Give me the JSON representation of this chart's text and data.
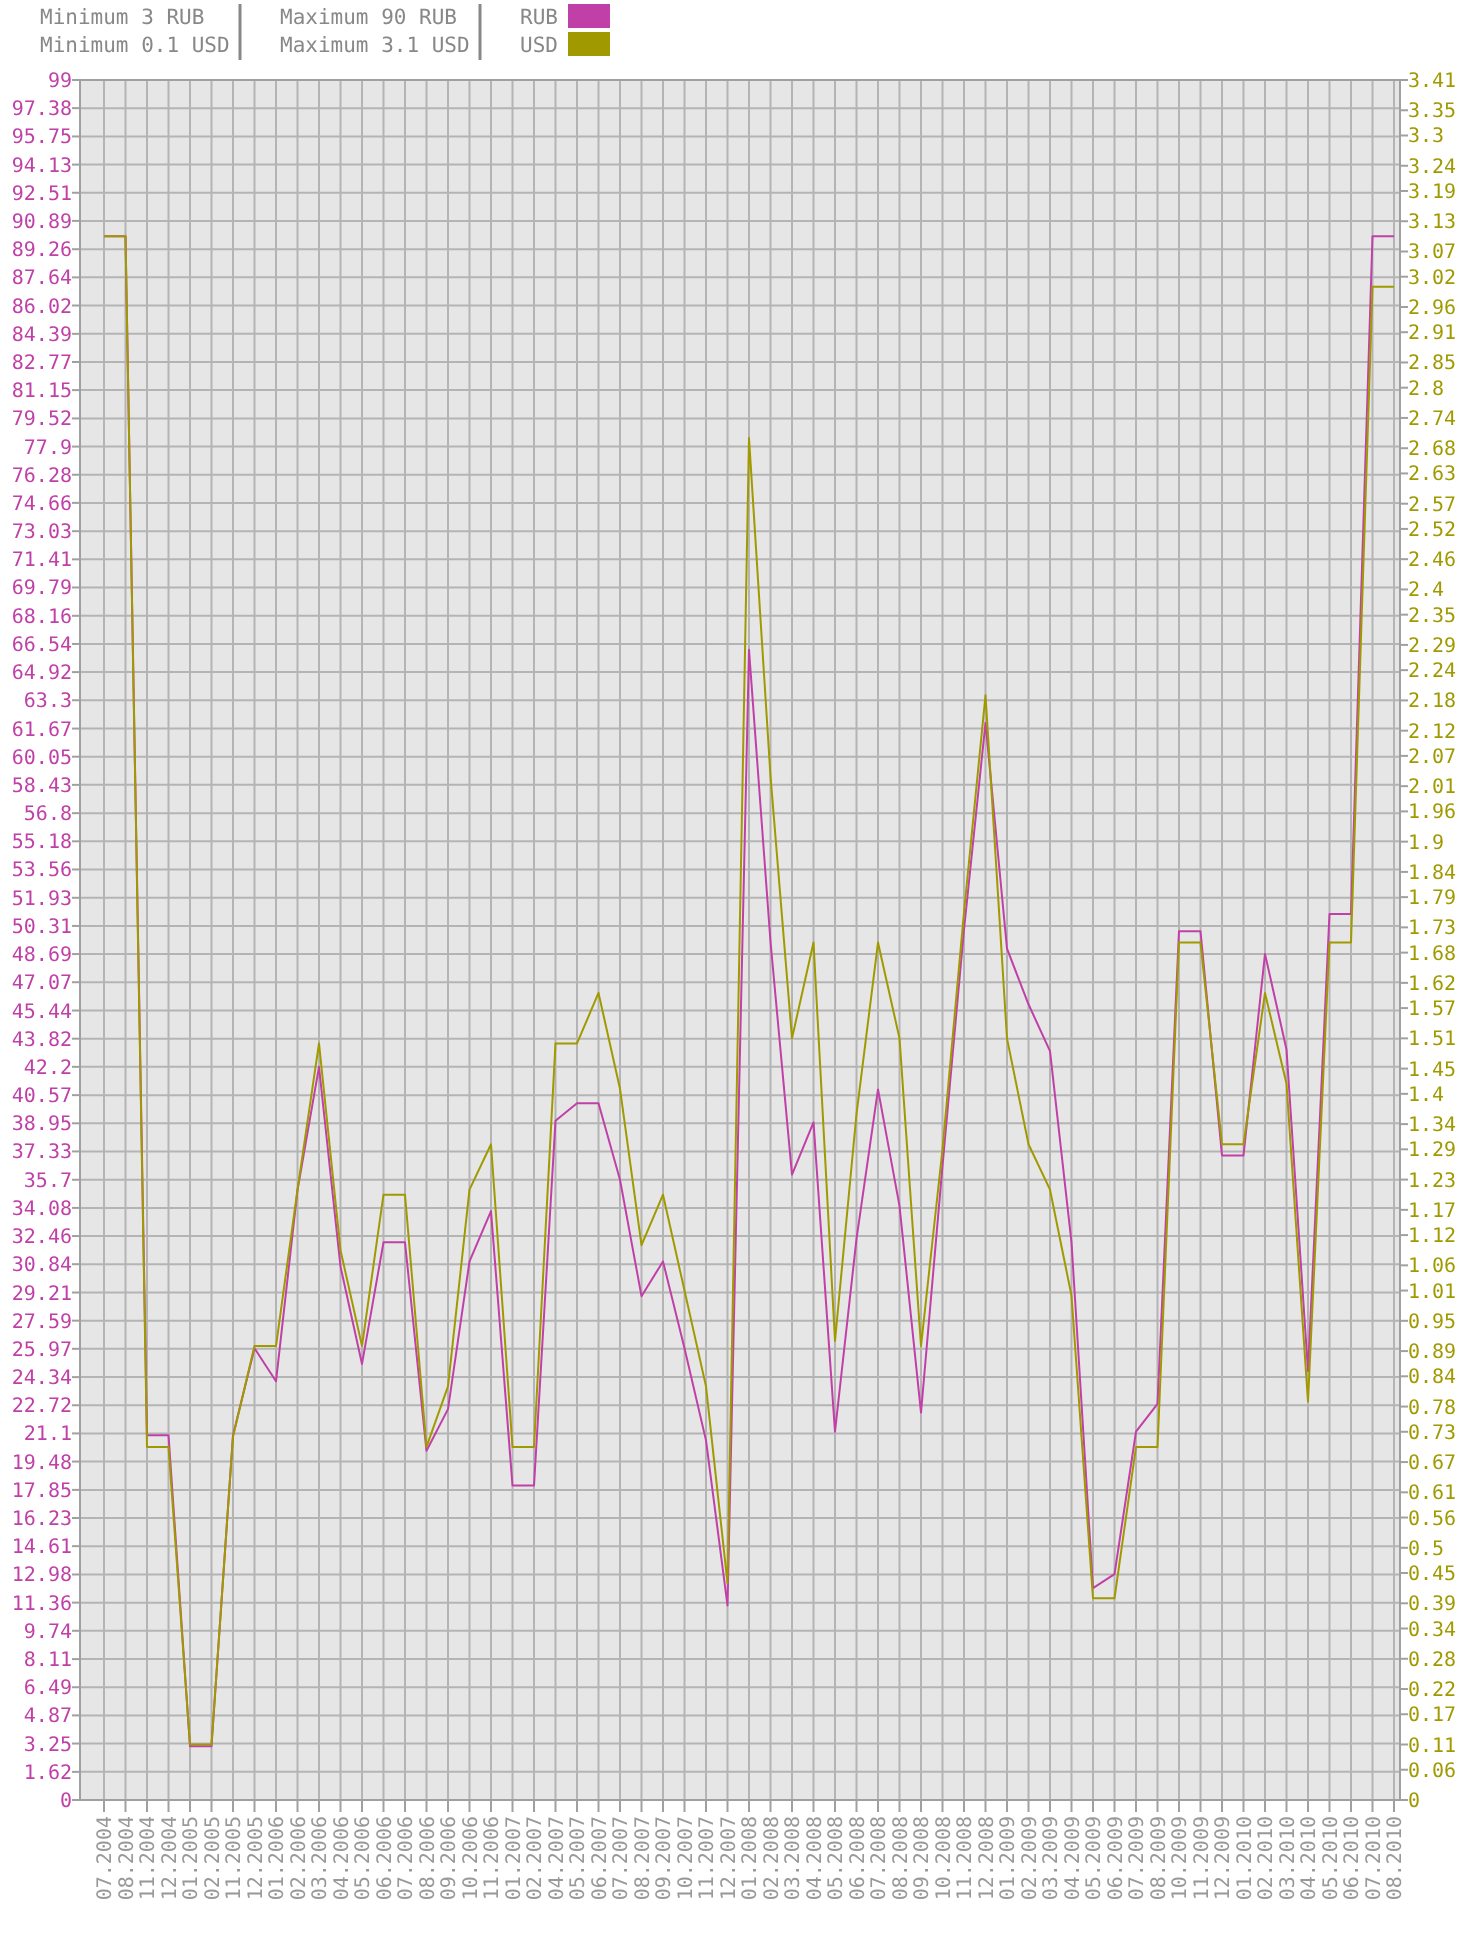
{
  "chart_data": {
    "type": "line",
    "annotations": [
      "Minimum 3 RUB",
      "Minimum 0.1 USD",
      "Maximum 90 RUB",
      "Maximum 3.1 USD"
    ],
    "categories": [
      "07.2004",
      "08.2004",
      "11.2004",
      "12.2004",
      "01.2005",
      "02.2005",
      "11.2005",
      "12.2005",
      "01.2006",
      "02.2006",
      "03.2006",
      "04.2006",
      "05.2006",
      "06.2006",
      "07.2006",
      "08.2006",
      "09.2006",
      "10.2006",
      "11.2006",
      "01.2007",
      "02.2007",
      "04.2007",
      "05.2007",
      "06.2007",
      "07.2007",
      "08.2007",
      "09.2007",
      "10.2007",
      "11.2007",
      "12.2007",
      "01.2008",
      "02.2008",
      "03.2008",
      "04.2008",
      "05.2008",
      "06.2008",
      "07.2008",
      "08.2008",
      "09.2008",
      "10.2008",
      "11.2008",
      "12.2008",
      "01.2009",
      "02.2009",
      "03.2009",
      "04.2009",
      "05.2009",
      "06.2009",
      "07.2009",
      "08.2009",
      "10.2009",
      "11.2009",
      "12.2009",
      "01.2010",
      "02.2010",
      "03.2010",
      "04.2010",
      "05.2010",
      "06.2010",
      "07.2010",
      "08.2010"
    ],
    "series": [
      {
        "name": "RUB",
        "color": "#c040a8",
        "axis": "y",
        "values": [
          90.0,
          90.0,
          21.0,
          21.0,
          3.1,
          3.1,
          21.0,
          26.0,
          24.1,
          35.1,
          42.2,
          30.7,
          25.1,
          32.1,
          32.1,
          20.1,
          22.5,
          31.0,
          33.9,
          18.1,
          18.1,
          39.1,
          40.1,
          40.1,
          35.7,
          29.0,
          31.0,
          26.0,
          20.7,
          11.2,
          66.2,
          49.4,
          36.0,
          39.0,
          21.2,
          32.3,
          40.9,
          34.2,
          22.3,
          36.5,
          50.1,
          62.0,
          49.0,
          45.8,
          43.1,
          32.1,
          12.2,
          13.0,
          21.2,
          22.8,
          50.0,
          50.0,
          37.1,
          37.1,
          48.7,
          43.2,
          24.7,
          51.0,
          51.0,
          90.0,
          90.0
        ]
      },
      {
        "name": "USD",
        "color": "#a09a00",
        "axis": "y2",
        "values": [
          3.1,
          3.1,
          0.7,
          0.7,
          0.11,
          0.11,
          0.72,
          0.9,
          0.9,
          1.21,
          1.5,
          1.09,
          0.9,
          1.2,
          1.2,
          0.7,
          0.82,
          1.21,
          1.3,
          0.7,
          0.7,
          1.5,
          1.5,
          1.6,
          1.41,
          1.1,
          1.2,
          1.01,
          0.82,
          0.43,
          2.7,
          2.03,
          1.51,
          1.7,
          0.91,
          1.36,
          1.7,
          1.51,
          0.9,
          1.29,
          1.76,
          2.19,
          1.51,
          1.3,
          1.21,
          1.0,
          0.4,
          0.4,
          0.7,
          0.7,
          1.7,
          1.7,
          1.3,
          1.3,
          1.6,
          1.42,
          0.79,
          1.7,
          1.7,
          3.0,
          3.0
        ]
      }
    ],
    "ylim": [
      0,
      99
    ],
    "yticks": [
      0,
      1.62,
      3.25,
      4.87,
      6.49,
      8.11,
      9.74,
      11.36,
      12.98,
      14.61,
      16.23,
      17.85,
      19.48,
      21.1,
      22.72,
      24.34,
      25.97,
      27.59,
      29.21,
      30.84,
      32.46,
      34.08,
      35.7,
      37.33,
      38.95,
      40.57,
      42.2,
      43.82,
      45.44,
      47.07,
      48.69,
      50.31,
      51.93,
      53.56,
      55.18,
      56.8,
      58.43,
      60.05,
      61.67,
      63.3,
      64.92,
      66.54,
      68.16,
      69.79,
      71.41,
      73.03,
      74.66,
      76.28,
      77.9,
      79.52,
      81.15,
      82.77,
      84.39,
      86.02,
      87.64,
      89.26,
      90.89,
      92.51,
      94.13,
      95.75,
      97.38,
      99
    ],
    "y2lim": [
      0,
      3.41
    ],
    "y2ticks": [
      0,
      0.06,
      0.11,
      0.17,
      0.22,
      0.28,
      0.34,
      0.39,
      0.45,
      0.5,
      0.56,
      0.61,
      0.67,
      0.73,
      0.78,
      0.84,
      0.89,
      0.95,
      1.01,
      1.06,
      1.12,
      1.17,
      1.23,
      1.29,
      1.34,
      1.4,
      1.45,
      1.51,
      1.57,
      1.62,
      1.68,
      1.73,
      1.79,
      1.84,
      1.9,
      1.96,
      2.01,
      2.07,
      2.12,
      2.18,
      2.24,
      2.29,
      2.35,
      2.4,
      2.46,
      2.52,
      2.57,
      2.63,
      2.68,
      2.74,
      2.8,
      2.85,
      2.91,
      2.96,
      3.02,
      3.07,
      3.13,
      3.19,
      3.24,
      3.3,
      3.35,
      3.41
    ],
    "grid": true,
    "legend": "top",
    "line_style": "solid",
    "marker": "none"
  }
}
